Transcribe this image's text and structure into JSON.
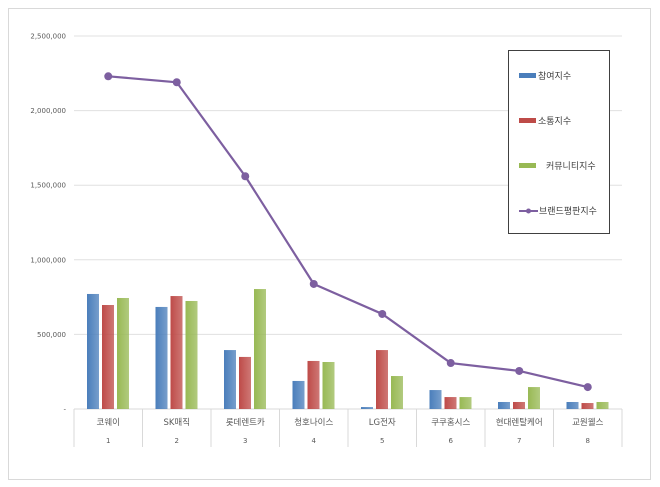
{
  "chart_data": {
    "type": "bar+line",
    "categories": [
      "코웨이",
      "SK매직",
      "롯데렌트카",
      "청호나이스",
      "LG전자",
      "쿠쿠홈시스",
      "현대렌탈케어",
      "교원웰스"
    ],
    "ranks": [
      "1",
      "2",
      "3",
      "4",
      "5",
      "6",
      "7",
      "8"
    ],
    "series": [
      {
        "name": "참여지수",
        "type": "bar",
        "color": "#4a7ebb",
        "values": [
          771000,
          684000,
          395000,
          188000,
          13000,
          127000,
          47000,
          47000
        ]
      },
      {
        "name": "소통지수",
        "type": "bar",
        "color": "#be4b48",
        "values": [
          697000,
          757000,
          349000,
          322000,
          395000,
          80000,
          47000,
          40000
        ]
      },
      {
        "name": "커뮤니티지수",
        "type": "bar",
        "color": "#98b954",
        "values": [
          744000,
          724000,
          804000,
          315000,
          221000,
          80000,
          147000,
          47000
        ]
      },
      {
        "name": "브랜드평판지수",
        "type": "line",
        "color": "#7d5fa0",
        "values": [
          2230000,
          2190000,
          1560000,
          838000,
          637000,
          308000,
          255000,
          147000
        ]
      }
    ],
    "yticks": [
      "-",
      "500,000",
      "1,000,000",
      "1,500,000",
      "2,000,000",
      "2,500,000"
    ],
    "ylim": [
      0,
      2500000
    ],
    "grid": true,
    "legend_position": "right"
  }
}
